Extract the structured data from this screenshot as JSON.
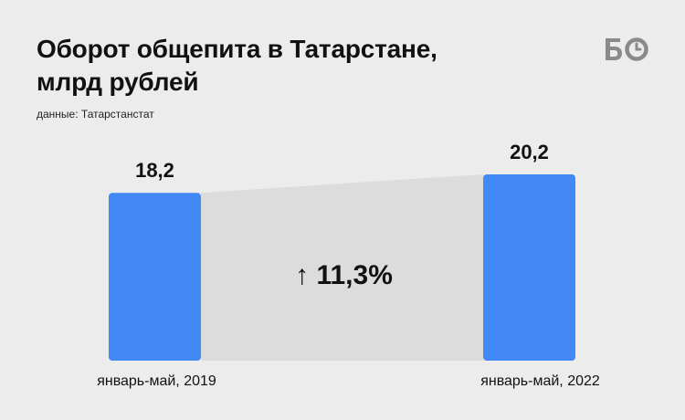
{
  "header": {
    "title": "Оборот общепита в Татарстане,\nмлрд рублей",
    "source": "данные: Татарстанстат",
    "logo_text": "БО"
  },
  "chart_data": {
    "type": "bar",
    "title": "Оборот общепита в Татарстане, млрд рублей",
    "categories": [
      "январь-май, 2019",
      "январь-май, 2022"
    ],
    "values": [
      18.2,
      20.2
    ],
    "value_labels": [
      "18,2",
      "20,2"
    ],
    "change_label": "↑ 11,3%",
    "ylim": [
      0,
      20.2
    ],
    "grid": false,
    "legend": "none",
    "colors": {
      "bar": "#4289f6",
      "connector": "#dcdcdc",
      "background": "#ececec"
    }
  }
}
